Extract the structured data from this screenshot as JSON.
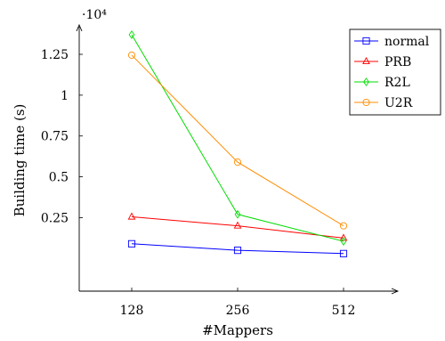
{
  "chart_data": {
    "type": "line",
    "title": "",
    "xlabel": "#Mappers",
    "ylabel": "Building time (s)",
    "y_scale_label": "·10⁴",
    "categories": [
      "128",
      "256",
      "512"
    ],
    "yticks": [
      {
        "value": 0.25,
        "label": "0.25"
      },
      {
        "value": 0.5,
        "label": "0.5"
      },
      {
        "value": 0.75,
        "label": "0.75"
      },
      {
        "value": 1.0,
        "label": "1"
      },
      {
        "value": 1.25,
        "label": "1.25"
      }
    ],
    "ylim": [
      -0.2,
      1.43
    ],
    "grid": false,
    "legend_position": "top-right",
    "series": [
      {
        "name": "normal",
        "color": "#0000ff",
        "marker": "square",
        "values": [
          0.09,
          0.05,
          0.03
        ]
      },
      {
        "name": "PRB",
        "color": "#ff0000",
        "marker": "triangle",
        "values": [
          0.255,
          0.2,
          0.125
        ]
      },
      {
        "name": "R2L",
        "color": "#00dd00",
        "marker": "diamond",
        "values": [
          1.37,
          0.27,
          0.105
        ]
      },
      {
        "name": "U2R",
        "color": "#ff8c00",
        "marker": "circle",
        "values": [
          1.245,
          0.59,
          0.2
        ]
      }
    ]
  }
}
